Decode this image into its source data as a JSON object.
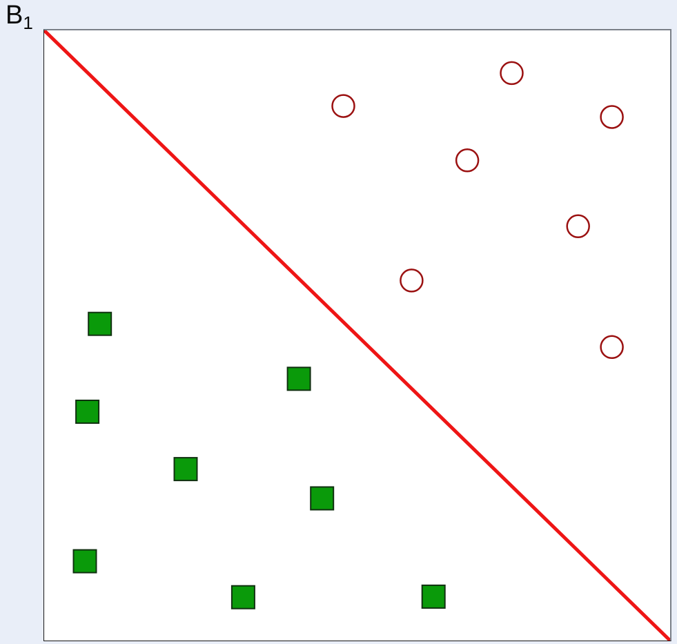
{
  "figure": {
    "background_color": "#e9eef8",
    "plot_background_color": "#ffffff",
    "frame_color_light": "#7a7f88",
    "frame_color_dark": "#161616",
    "boundary_label": {
      "base": "B",
      "subscript": "1"
    }
  },
  "chart_data": {
    "type": "scatter",
    "title": "",
    "xlabel": "",
    "ylabel": "",
    "axes_visible": false,
    "grid": false,
    "legend": "none",
    "xlim": [
      0,
      1
    ],
    "ylim": [
      0,
      1
    ],
    "boundary_line": {
      "label": "B1",
      "color": "#ee1515",
      "width": 5,
      "from": [
        0,
        1
      ],
      "to": [
        1,
        0
      ]
    },
    "series": [
      {
        "name": "green-squares-class",
        "marker": "filled-square",
        "fill": "#0a9a0a",
        "stroke": "#103010",
        "stroke_width": 2,
        "size": 33,
        "points": [
          [
            0.089,
            0.519
          ],
          [
            0.407,
            0.429
          ],
          [
            0.069,
            0.375
          ],
          [
            0.226,
            0.281
          ],
          [
            0.444,
            0.233
          ],
          [
            0.065,
            0.13
          ],
          [
            0.318,
            0.071
          ],
          [
            0.622,
            0.072
          ]
        ]
      },
      {
        "name": "dark-red-open-circles-class",
        "marker": "open-circle",
        "fill": "none",
        "stroke": "#9b1111",
        "stroke_width": 2.5,
        "radius": 16,
        "points": [
          [
            0.747,
            0.93
          ],
          [
            0.478,
            0.876
          ],
          [
            0.907,
            0.858
          ],
          [
            0.676,
            0.787
          ],
          [
            0.853,
            0.679
          ],
          [
            0.587,
            0.59
          ],
          [
            0.907,
            0.481
          ]
        ]
      }
    ]
  }
}
